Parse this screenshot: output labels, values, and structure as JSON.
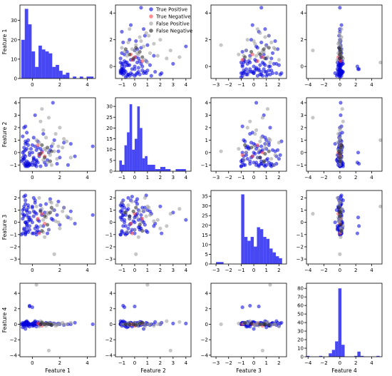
{
  "chart_data": {
    "type": "scatter_matrix",
    "features": [
      "Feature 1",
      "Feature 2",
      "Feature 3",
      "Feature 4"
    ],
    "classes": [
      {
        "name": "True Positive",
        "color": "#0000dd"
      },
      {
        "name": "True Negative",
        "color": "#ff4444"
      },
      {
        "name": "False Positive",
        "color": "#999999"
      },
      {
        "name": "False Negative",
        "color": "#222222"
      }
    ],
    "legend": {
      "placement": "top-right of panel row 1 col 2"
    },
    "axes": {
      "Feature 1": {
        "lim": [
          -0.9,
          4.6
        ],
        "ticks": [
          0,
          2,
          4
        ]
      },
      "Feature 2": {
        "lim": [
          -1.5,
          4.4
        ],
        "ticks": [
          -1,
          0,
          1,
          2,
          3,
          4
        ]
      },
      "Feature 3": {
        "lim": [
          -3.4,
          2.6
        ],
        "ticks": [
          -3,
          -2,
          -1,
          0,
          1,
          2
        ]
      },
      "Feature 4": {
        "lim": [
          -4.2,
          5.3
        ],
        "ticks": [
          -4,
          -2,
          0,
          2,
          4
        ]
      }
    },
    "histograms": [
      {
        "feature": "Feature 1",
        "ylim": [
          0,
          38
        ],
        "yticks": [
          0,
          10,
          20,
          30
        ],
        "edges": [
          -0.8,
          -0.55,
          -0.3,
          -0.05,
          0.2,
          0.45,
          0.7,
          0.95,
          1.2,
          1.45,
          1.7,
          1.95,
          2.2,
          2.45,
          2.7,
          2.95,
          3.2,
          3.45,
          3.7,
          3.95,
          4.2,
          4.45
        ],
        "counts": [
          20,
          36,
          28,
          14,
          6,
          17,
          15,
          14,
          13,
          6,
          7,
          4,
          2,
          3,
          0,
          1,
          0,
          1,
          0,
          1,
          1
        ]
      },
      {
        "feature": "Feature 2",
        "ylim": [
          0,
          34
        ],
        "yticks": [
          0,
          5,
          10,
          15,
          20,
          25,
          30
        ],
        "edges": [
          -1.2,
          -1.0,
          -0.8,
          -0.6,
          -0.4,
          -0.2,
          0.0,
          0.2,
          0.4,
          0.6,
          0.8,
          1.0,
          1.2,
          1.6,
          2.0,
          2.4,
          2.8,
          3.2,
          3.6,
          4.0
        ],
        "counts": [
          5,
          3,
          12,
          18,
          31,
          10,
          15,
          30,
          20,
          6,
          7,
          3,
          3,
          1,
          2,
          1,
          0,
          1,
          1
        ]
      },
      {
        "feature": "Feature 3",
        "ylim": [
          0,
          38
        ],
        "yticks": [
          0,
          5,
          10,
          15,
          20,
          25,
          30,
          35
        ],
        "edges": [
          -3.0,
          -2.4,
          -1.0,
          -0.75,
          -0.5,
          -0.25,
          0.0,
          0.25,
          0.5,
          0.75,
          1.0,
          1.25,
          1.5,
          1.75,
          2.0,
          2.25
        ],
        "counts": [
          1,
          0,
          36,
          14,
          12,
          14,
          9,
          19,
          18,
          14,
          13,
          8,
          6,
          4,
          3
        ]
      },
      {
        "feature": "Feature 4",
        "ylim": [
          0,
          86
        ],
        "yticks": [
          0,
          10,
          20,
          30,
          40,
          50,
          60,
          70,
          80
        ],
        "edges": [
          -4.2,
          -3.8,
          -3.4,
          -3.0,
          -2.6,
          -2.2,
          -1.8,
          -1.4,
          -1.0,
          -0.6,
          -0.2,
          0.2,
          0.6,
          1.0,
          1.4,
          1.8,
          2.2,
          2.6,
          3.0,
          3.4,
          3.8,
          4.2,
          4.6,
          5.0
        ],
        "counts": [
          1,
          0,
          0,
          0,
          1,
          0,
          0,
          4,
          8,
          18,
          80,
          14,
          0,
          0,
          0,
          1,
          6,
          1,
          0,
          0,
          0,
          0,
          1
        ]
      }
    ],
    "points": [
      [
        -0.5,
        -1.0,
        -0.8,
        0.1,
        0
      ],
      [
        -0.6,
        -0.9,
        0.6,
        0.0,
        0
      ],
      [
        -0.4,
        1.6,
        -0.1,
        0.3,
        0
      ],
      [
        -0.3,
        -0.8,
        1.2,
        -0.2,
        0
      ],
      [
        -0.7,
        0.0,
        -0.9,
        0.2,
        0
      ],
      [
        -0.2,
        -1.0,
        0.2,
        0.0,
        0
      ],
      [
        -0.5,
        0.2,
        1.5,
        0.1,
        0
      ],
      [
        -0.6,
        -0.5,
        -0.5,
        -0.3,
        0
      ],
      [
        -0.4,
        -1.1,
        0.9,
        0.4,
        0
      ],
      [
        -0.8,
        -0.7,
        -1.0,
        0.0,
        0
      ],
      [
        -0.3,
        0.6,
        0.1,
        0.2,
        0
      ],
      [
        -0.5,
        -0.3,
        1.8,
        -0.1,
        0
      ],
      [
        -0.2,
        -0.9,
        -0.3,
        2.4,
        0
      ],
      [
        -0.6,
        0.1,
        0.5,
        0.0,
        0
      ],
      [
        -0.4,
        -1.0,
        -0.7,
        0.1,
        0
      ],
      [
        -0.7,
        -0.6,
        1.0,
        -0.4,
        0
      ],
      [
        -0.3,
        1.0,
        -0.8,
        0.0,
        0
      ],
      [
        -0.5,
        -0.8,
        0.0,
        0.3,
        0
      ],
      [
        -0.6,
        -0.2,
        2.1,
        0.1,
        0
      ],
      [
        -0.4,
        0.3,
        -0.4,
        -0.2,
        0
      ],
      [
        -0.2,
        -1.0,
        0.8,
        0.0,
        0
      ],
      [
        -0.5,
        2.1,
        -0.9,
        0.2,
        0
      ],
      [
        -0.7,
        -0.4,
        0.3,
        0.0,
        0
      ],
      [
        -0.3,
        -0.9,
        1.4,
        0.1,
        0
      ],
      [
        -0.6,
        0.4,
        -0.6,
        -0.1,
        0
      ],
      [
        -0.4,
        -0.7,
        0.6,
        0.2,
        0
      ],
      [
        -0.5,
        -1.1,
        -1.0,
        0.0,
        0
      ],
      [
        -0.2,
        0.0,
        0.4,
        2.3,
        0
      ],
      [
        -0.6,
        -0.5,
        1.1,
        0.1,
        0
      ],
      [
        -0.4,
        0.8,
        -0.2,
        0.0,
        0
      ],
      [
        0.1,
        -0.6,
        -0.9,
        0.0,
        0
      ],
      [
        0.3,
        0.2,
        0.7,
        0.1,
        0
      ],
      [
        0.0,
        -1.0,
        1.3,
        -0.2,
        0
      ],
      [
        0.2,
        0.5,
        -0.5,
        0.3,
        0
      ],
      [
        0.4,
        -0.8,
        0.2,
        0.0,
        0
      ],
      [
        0.1,
        1.2,
        0.9,
        -0.1,
        0
      ],
      [
        0.5,
        -0.3,
        -0.8,
        0.2,
        0
      ],
      [
        0.2,
        -1.0,
        1.6,
        0.0,
        0
      ],
      [
        0.0,
        0.0,
        0.0,
        0.1,
        0
      ],
      [
        0.3,
        -0.7,
        -0.3,
        -0.3,
        0
      ],
      [
        0.6,
        0.3,
        1.0,
        0.0,
        0
      ],
      [
        0.1,
        -0.4,
        0.5,
        0.2,
        0
      ],
      [
        0.4,
        0.9,
        -0.7,
        0.0,
        0
      ],
      [
        0.2,
        -0.9,
        1.8,
        0.4,
        0
      ],
      [
        0.5,
        -0.1,
        0.1,
        -0.1,
        0
      ],
      [
        0.0,
        0.6,
        1.2,
        0.0,
        0
      ],
      [
        0.3,
        -1.1,
        -1.0,
        0.1,
        0
      ],
      [
        0.7,
        0.1,
        0.6,
        0.0,
        0
      ],
      [
        0.1,
        -0.5,
        2.0,
        -0.2,
        0
      ],
      [
        0.4,
        0.4,
        -0.4,
        0.3,
        0
      ],
      [
        0.9,
        -0.8,
        0.8,
        0.1,
        0
      ],
      [
        1.2,
        0.0,
        -0.6,
        0.0,
        0
      ],
      [
        1.0,
        -1.0,
        1.5,
        0.2,
        0
      ],
      [
        1.4,
        0.5,
        0.3,
        -0.1,
        0
      ],
      [
        1.1,
        -0.6,
        -0.9,
        0.0,
        0
      ],
      [
        1.6,
        1.0,
        1.0,
        0.1,
        0
      ],
      [
        1.8,
        -0.9,
        0.6,
        0.0,
        0
      ],
      [
        1.3,
        0.2,
        1.9,
        0.2,
        0
      ],
      [
        2.0,
        -0.4,
        -0.2,
        0.0,
        0
      ],
      [
        2.3,
        0.8,
        1.2,
        -0.1,
        0
      ],
      [
        2.6,
        -1.0,
        0.4,
        0.0,
        0
      ],
      [
        1.9,
        0.1,
        1.7,
        0.1,
        0
      ],
      [
        2.8,
        0.7,
        0.9,
        0.0,
        0
      ],
      [
        3.1,
        -0.3,
        -0.1,
        0.2,
        0
      ],
      [
        4.4,
        0.5,
        0.6,
        0.0,
        0
      ],
      [
        -0.5,
        0.7,
        0.0,
        -0.6,
        0
      ],
      [
        -0.3,
        -1.1,
        0.4,
        0.0,
        0
      ],
      [
        0.2,
        3.0,
        0.8,
        0.1,
        0
      ],
      [
        -0.6,
        2.0,
        1.3,
        0.0,
        0
      ],
      [
        0.8,
        1.5,
        -0.3,
        0.0,
        0
      ],
      [
        -0.4,
        -1.0,
        1.0,
        0.3,
        0
      ],
      [
        0.0,
        -0.8,
        -0.9,
        2.2,
        0
      ],
      [
        -0.7,
        1.3,
        0.7,
        0.0,
        0
      ],
      [
        1.5,
        4.0,
        0.2,
        0.1,
        0
      ],
      [
        -0.2,
        -0.2,
        -0.6,
        -0.3,
        0
      ],
      [
        0.6,
        -1.1,
        1.4,
        0.0,
        0
      ],
      [
        -0.5,
        0.9,
        2.2,
        0.2,
        0
      ],
      [
        0.3,
        -0.6,
        -0.8,
        0.0,
        0
      ],
      [
        -0.1,
        0.3,
        0.2,
        0.0,
        0
      ],
      [
        0.5,
        -0.2,
        -0.9,
        0.0,
        1
      ],
      [
        0.7,
        0.0,
        0.7,
        -0.2,
        1
      ],
      [
        0.4,
        0.6,
        0.3,
        0.1,
        1
      ],
      [
        0.9,
        -0.3,
        -0.1,
        0.0,
        1
      ],
      [
        1.2,
        0.0,
        -0.6,
        0.2,
        2
      ],
      [
        1.5,
        0.7,
        1.0,
        0.1,
        2
      ],
      [
        0.8,
        1.8,
        0.2,
        0.0,
        2
      ],
      [
        1.8,
        -0.5,
        1.4,
        -0.1,
        2
      ],
      [
        0.6,
        2.5,
        -0.3,
        0.4,
        2
      ],
      [
        1.0,
        1.2,
        0.6,
        0.0,
        2
      ],
      [
        2.2,
        0.4,
        0.9,
        0.2,
        2
      ],
      [
        1.3,
        -0.2,
        1.7,
        0.0,
        2
      ],
      [
        0.9,
        0.3,
        -1.2,
        0.1,
        2
      ],
      [
        1.7,
        1.5,
        0.1,
        -0.2,
        2
      ],
      [
        2.5,
        0.9,
        0.5,
        0.0,
        2
      ],
      [
        0.7,
        3.5,
        1.1,
        0.3,
        2
      ],
      [
        1.1,
        -0.8,
        0.8,
        0.0,
        2
      ],
      [
        2.0,
        2.0,
        -0.5,
        0.1,
        2
      ],
      [
        1.4,
        -1.0,
        1.6,
        0.0,
        2
      ],
      [
        0.5,
        0.8,
        2.0,
        -0.3,
        2
      ],
      [
        1.6,
        0.1,
        -2.6,
        0.0,
        2
      ],
      [
        2.8,
        -0.4,
        0.3,
        0.2,
        2
      ],
      [
        0.3,
        1.0,
        1.3,
        5.1,
        2
      ],
      [
        1.9,
        0.5,
        0.0,
        0.0,
        2
      ],
      [
        1.2,
        2.8,
        0.7,
        -3.4,
        2
      ],
      [
        0.8,
        -0.6,
        -0.8,
        0.1,
        2
      ],
      [
        2.3,
        1.1,
        1.2,
        0.0,
        2
      ],
      [
        1.0,
        0.2,
        0.4,
        -0.2,
        2
      ],
      [
        0.6,
        -0.1,
        0.9,
        0.0,
        3
      ],
      [
        1.1,
        0.4,
        -0.2,
        0.1,
        3
      ],
      [
        0.9,
        -0.4,
        0.5,
        0.0,
        3
      ],
      [
        1.4,
        0.1,
        1.2,
        -0.1,
        3
      ],
      [
        0.7,
        0.6,
        -0.7,
        0.2,
        3
      ],
      [
        1.3,
        -0.7,
        0.8,
        0.0,
        3
      ]
    ]
  }
}
